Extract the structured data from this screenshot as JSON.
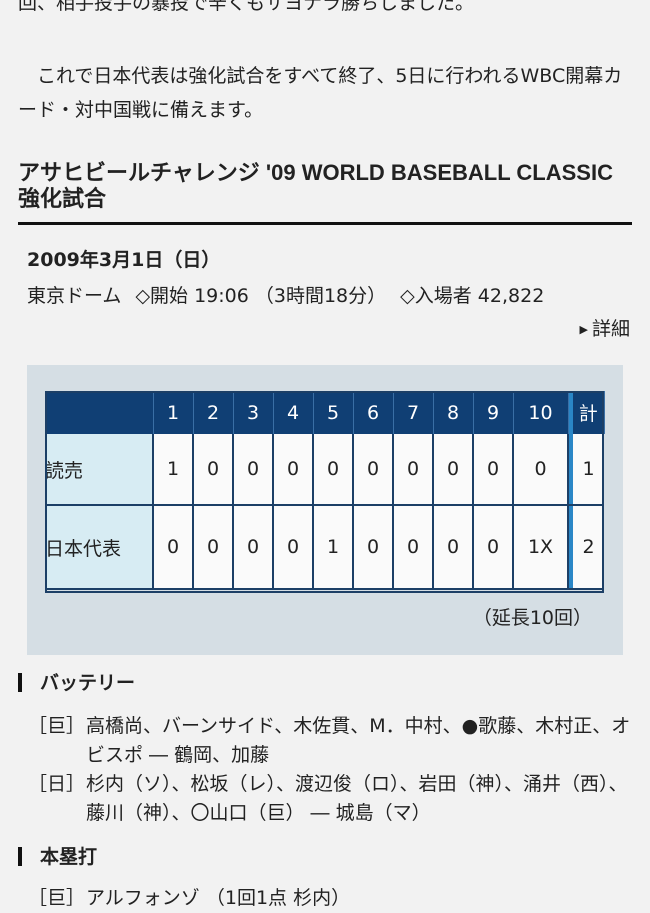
{
  "article": {
    "para1": "回、相手投手の暴投で辛くもサヨナラ勝ちしました。",
    "para2": "　これで日本代表は強化試合をすべて終了、5日に行われるWBC開幕カード・対中国戦に備えます。"
  },
  "game": {
    "title": "アサヒビールチャレンジ '09 WORLD BASEBALL CLASSIC 強化試合",
    "date": "2009年3月1日（日）",
    "venue": "東京ドーム",
    "start": "◇開始 19:06 （3時間18分）",
    "attendance": "◇入場者 42,822",
    "detail_link": "詳細"
  },
  "scoreboard": {
    "innings": [
      "1",
      "2",
      "3",
      "4",
      "5",
      "6",
      "7",
      "8",
      "9",
      "10"
    ],
    "total_header": "計",
    "rows": [
      {
        "team": "読売",
        "scores": [
          "1",
          "0",
          "0",
          "0",
          "0",
          "0",
          "0",
          "0",
          "0",
          "0"
        ],
        "total": "1"
      },
      {
        "team": "日本代表",
        "scores": [
          "0",
          "0",
          "0",
          "0",
          "1",
          "0",
          "0",
          "0",
          "0",
          "1X"
        ],
        "total": "2"
      }
    ],
    "note": "（延長10回）"
  },
  "battery": {
    "heading": "バッテリー",
    "entries": [
      {
        "tag": "［巨］",
        "text": "高橋尚、バーンサイド、木佐貫、M．中村、●歌藤、木村正、オビスポ ― 鶴岡、加藤"
      },
      {
        "tag": "［日］",
        "text": "杉内（ソ）、松坂（レ）、渡辺俊（ロ）、岩田（神）、涌井（西）、藤川（神）、〇山口（巨） ― 城島（マ）"
      }
    ]
  },
  "homeruns": {
    "heading": "本塁打",
    "entries": [
      {
        "tag": "［巨］",
        "text": "アルフォンゾ （1回1点 杉内）"
      }
    ]
  },
  "colors": {
    "header_bg": "#103f74",
    "team_cell_bg": "#d7ecf3",
    "separator": "#2a86c6",
    "panel_bg": "#d5dee4"
  }
}
